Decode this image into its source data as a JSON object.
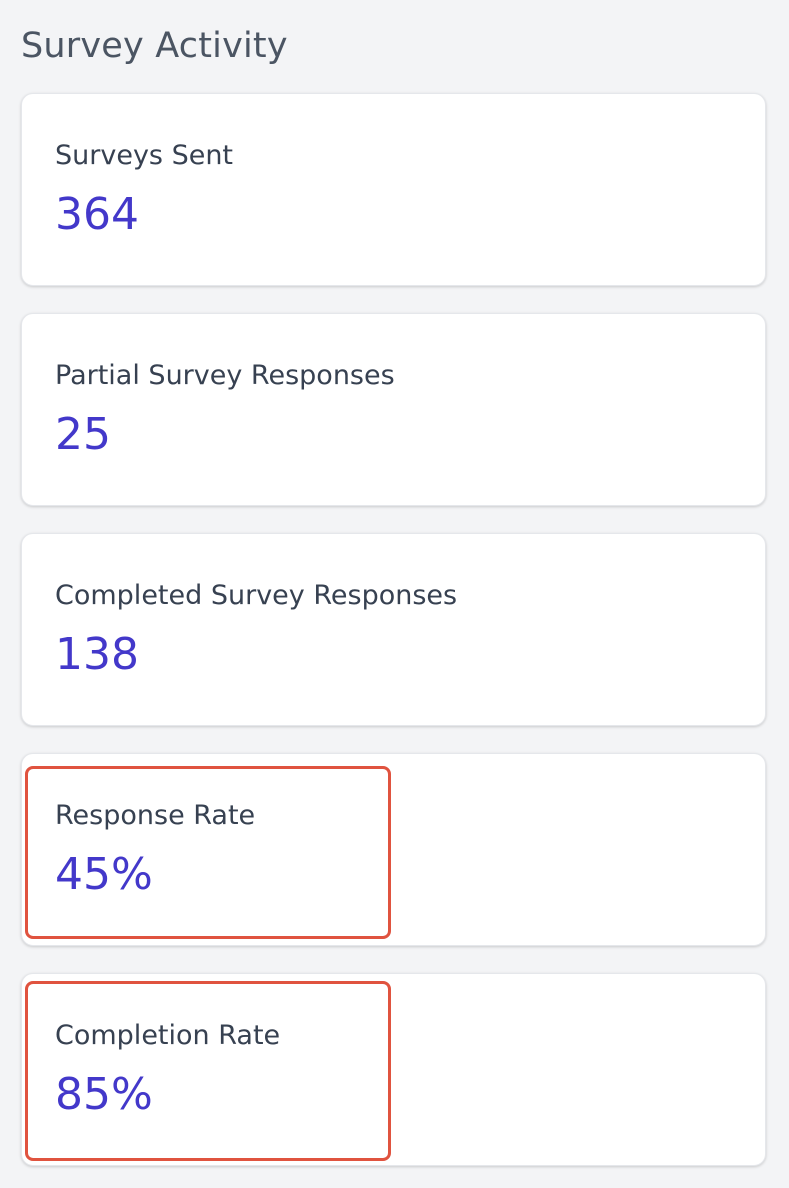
{
  "section": {
    "title": "Survey Activity"
  },
  "cards": [
    {
      "label": "Surveys Sent",
      "value": "364"
    },
    {
      "label": "Partial Survey Responses",
      "value": "25"
    },
    {
      "label": "Completed Survey Responses",
      "value": "138"
    },
    {
      "label": "Response Rate",
      "value": "45%"
    },
    {
      "label": "Completion Rate",
      "value": "85%"
    }
  ],
  "colors": {
    "background": "#f3f4f6",
    "title": "#4b5563",
    "label": "#374151",
    "value": "#4338ca",
    "highlight": "#e0533f"
  }
}
